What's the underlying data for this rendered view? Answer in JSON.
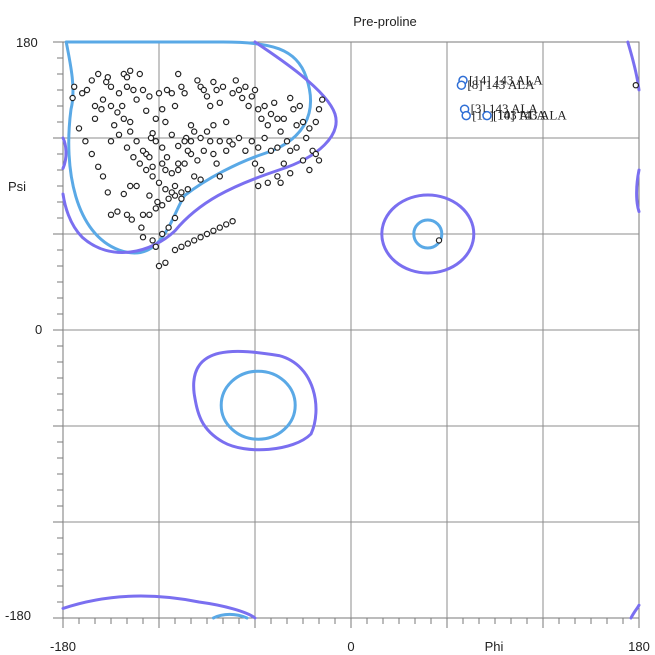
{
  "chart_data": {
    "type": "scatter",
    "title": "Pre-proline",
    "xlabel": "Phi",
    "ylabel": "Psi",
    "xlim": [
      -180,
      180
    ],
    "ylim": [
      -180,
      180
    ],
    "x_ticks": [
      "-180",
      "0",
      "180"
    ],
    "y_ticks": [
      "-180",
      "0",
      "180"
    ],
    "grid": true,
    "colors": {
      "inner_contour": "#5aa9e6",
      "outer_contour": "#7a6ff0",
      "point": "#222222",
      "highlight": "#2f6fd6"
    },
    "points": [
      [
        -173,
        152
      ],
      [
        -174,
        145
      ],
      [
        -168,
        148
      ],
      [
        -165,
        150
      ],
      [
        -162,
        156
      ],
      [
        -155,
        144
      ],
      [
        -153,
        155
      ],
      [
        -150,
        152
      ],
      [
        -145,
        148
      ],
      [
        -143,
        140
      ],
      [
        -140,
        152
      ],
      [
        -138,
        130
      ],
      [
        -150,
        118
      ],
      [
        -158,
        160
      ],
      [
        -152,
        158
      ],
      [
        -160,
        140
      ],
      [
        -148,
        128
      ],
      [
        -145,
        122
      ],
      [
        -142,
        160
      ],
      [
        -140,
        158
      ],
      [
        -138,
        162
      ],
      [
        -136,
        150
      ],
      [
        -134,
        144
      ],
      [
        -132,
        160
      ],
      [
        -130,
        150
      ],
      [
        -128,
        137
      ],
      [
        -126,
        146
      ],
      [
        -124,
        123
      ],
      [
        -120,
        148
      ],
      [
        -122,
        132
      ],
      [
        -118,
        138
      ],
      [
        -116,
        130
      ],
      [
        -115,
        150
      ],
      [
        -112,
        148
      ],
      [
        -110,
        140
      ],
      [
        -108,
        160
      ],
      [
        -106,
        152
      ],
      [
        -104,
        148
      ],
      [
        -103,
        120
      ],
      [
        -100,
        128
      ],
      [
        -96,
        156
      ],
      [
        -94,
        152
      ],
      [
        -92,
        150
      ],
      [
        -90,
        146
      ],
      [
        -88,
        140
      ],
      [
        -86,
        155
      ],
      [
        -84,
        150
      ],
      [
        -82,
        142
      ],
      [
        -80,
        152
      ],
      [
        -78,
        130
      ],
      [
        -76,
        118
      ],
      [
        -74,
        148
      ],
      [
        -72,
        156
      ],
      [
        -70,
        150
      ],
      [
        -68,
        145
      ],
      [
        -66,
        152
      ],
      [
        -64,
        140
      ],
      [
        -62,
        146
      ],
      [
        -60,
        150
      ],
      [
        -58,
        138
      ],
      [
        -56,
        132
      ],
      [
        -54,
        140
      ],
      [
        -52,
        128
      ],
      [
        -50,
        135
      ],
      [
        -48,
        142
      ],
      [
        -46,
        132
      ],
      [
        -44,
        124
      ],
      [
        -42,
        132
      ],
      [
        -40,
        118
      ],
      [
        -38,
        145
      ],
      [
        -36,
        138
      ],
      [
        -34,
        128
      ],
      [
        -32,
        140
      ],
      [
        -30,
        130
      ],
      [
        -28,
        120
      ],
      [
        -26,
        126
      ],
      [
        -24,
        112
      ],
      [
        -22,
        130
      ],
      [
        -20,
        138
      ],
      [
        -18,
        144
      ],
      [
        -122,
        118
      ],
      [
        -118,
        114
      ],
      [
        -115,
        108
      ],
      [
        -118,
        104
      ],
      [
        -116,
        100
      ],
      [
        -112,
        98
      ],
      [
        -108,
        100
      ],
      [
        -104,
        104
      ],
      [
        -100,
        110
      ],
      [
        -96,
        106
      ],
      [
        -92,
        112
      ],
      [
        -88,
        118
      ],
      [
        -86,
        110
      ],
      [
        -84,
        104
      ],
      [
        -82,
        96
      ],
      [
        -124,
        102
      ],
      [
        -128,
        110
      ],
      [
        -125,
        120
      ],
      [
        -112,
        122
      ],
      [
        -108,
        115
      ],
      [
        -104,
        118
      ],
      [
        -100,
        118
      ],
      [
        -98,
        124
      ],
      [
        -94,
        120
      ],
      [
        -90,
        124
      ],
      [
        -86,
        128
      ],
      [
        -82,
        118
      ],
      [
        -78,
        112
      ],
      [
        -74,
        116
      ],
      [
        -70,
        120
      ],
      [
        -66,
        112
      ],
      [
        -62,
        118
      ],
      [
        -58,
        114
      ],
      [
        -54,
        120
      ],
      [
        -50,
        112
      ],
      [
        -46,
        114
      ],
      [
        -42,
        104
      ],
      [
        -38,
        98
      ],
      [
        -34,
        114
      ],
      [
        -30,
        106
      ],
      [
        -26,
        100
      ],
      [
        -22,
        110
      ],
      [
        -20,
        106
      ],
      [
        -56,
        100
      ],
      [
        -60,
        104
      ],
      [
        -126,
        84
      ],
      [
        -121,
        80
      ],
      [
        -110,
        90
      ],
      [
        -108,
        104
      ],
      [
        -106,
        82
      ],
      [
        -102,
        112
      ],
      [
        -98,
        96
      ],
      [
        -94,
        94
      ],
      [
        -58,
        90
      ],
      [
        -52,
        92
      ],
      [
        -46,
        96
      ],
      [
        -44,
        92
      ],
      [
        -38,
        112
      ],
      [
        -142,
        85
      ],
      [
        -138,
        90
      ],
      [
        -134,
        90
      ],
      [
        -120,
        40
      ],
      [
        -116,
        42
      ],
      [
        -110,
        50
      ],
      [
        -106,
        52
      ],
      [
        -102,
        54
      ],
      [
        -98,
        56
      ],
      [
        -94,
        58
      ],
      [
        -90,
        60
      ],
      [
        -86,
        62
      ],
      [
        -82,
        64
      ],
      [
        -78,
        66
      ],
      [
        -74,
        68
      ],
      [
        -150,
        72
      ],
      [
        -146,
        74
      ],
      [
        -130,
        58
      ],
      [
        -124,
        56
      ],
      [
        -122,
        52
      ],
      [
        -118,
        60
      ],
      [
        -114,
        64
      ],
      [
        -110,
        70
      ],
      [
        -130,
        72
      ],
      [
        -126,
        72
      ],
      [
        -122,
        76
      ],
      [
        -118,
        78
      ],
      [
        -114,
        82
      ],
      [
        -110,
        84
      ],
      [
        -106,
        86
      ],
      [
        -102,
        88
      ],
      [
        -152,
        86
      ],
      [
        -155,
        96
      ],
      [
        -158,
        102
      ],
      [
        -162,
        110
      ],
      [
        -166,
        118
      ],
      [
        -170,
        126
      ],
      [
        -160,
        132
      ],
      [
        -156,
        138
      ],
      [
        -150,
        140
      ],
      [
        -146,
        136
      ],
      [
        -142,
        132
      ],
      [
        -138,
        124
      ],
      [
        -134,
        118
      ],
      [
        -130,
        112
      ],
      [
        -126,
        108
      ],
      [
        -140,
        72
      ],
      [
        -137,
        69
      ],
      [
        -131,
        64
      ],
      [
        -140,
        114
      ],
      [
        -136,
        108
      ],
      [
        -132,
        104
      ],
      [
        -128,
        100
      ],
      [
        -124,
        96
      ],
      [
        -120,
        92
      ],
      [
        -116,
        88
      ],
      [
        -112,
        86
      ],
      [
        55,
        56
      ],
      [
        178,
        153
      ]
    ],
    "highlights": [
      {
        "label": "[14]  143 ALA",
        "phi": 70,
        "psi": 156
      },
      {
        "label": "[8]  143 ALA",
        "phi": 69,
        "psi": 153
      },
      {
        "label": "[3]  143 ALA",
        "phi": 71,
        "psi": 138
      },
      {
        "label": "[12]  143 ALA",
        "phi": 72,
        "psi": 134
      },
      {
        "label": "[10]  143 ALA",
        "phi": 85,
        "psi": 134
      }
    ]
  }
}
